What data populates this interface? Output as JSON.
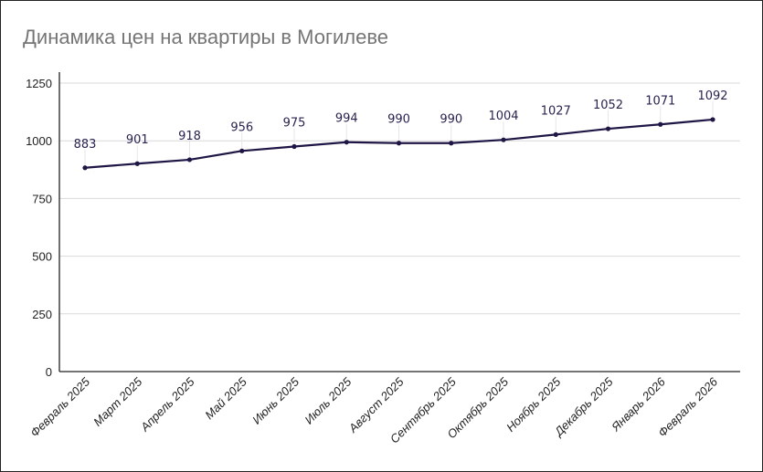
{
  "chart_data": {
    "type": "line",
    "title": "Динамика цен на квартиры в Могилеве",
    "xlabel": "",
    "ylabel": "",
    "categories": [
      "Февраль 2025",
      "Март 2025",
      "Апрель 2025",
      "Май 2025",
      "Июнь 2025",
      "Июль 2025",
      "Август 2025",
      "Сентябрь 2025",
      "Октябрь 2025",
      "Ноябрь 2025",
      "Декабрь 2025",
      "Январь 2026",
      "Февраль 2026"
    ],
    "values": [
      883,
      901,
      918,
      956,
      975,
      994,
      990,
      990,
      1004,
      1027,
      1052,
      1071,
      1092
    ],
    "ylim": [
      0,
      1250
    ],
    "yticks": [
      "0",
      "250",
      "500",
      "750",
      "1000",
      "1250"
    ],
    "grid": true,
    "data_labels": true,
    "line_color": "#1f1645",
    "title_color": "#757575"
  }
}
